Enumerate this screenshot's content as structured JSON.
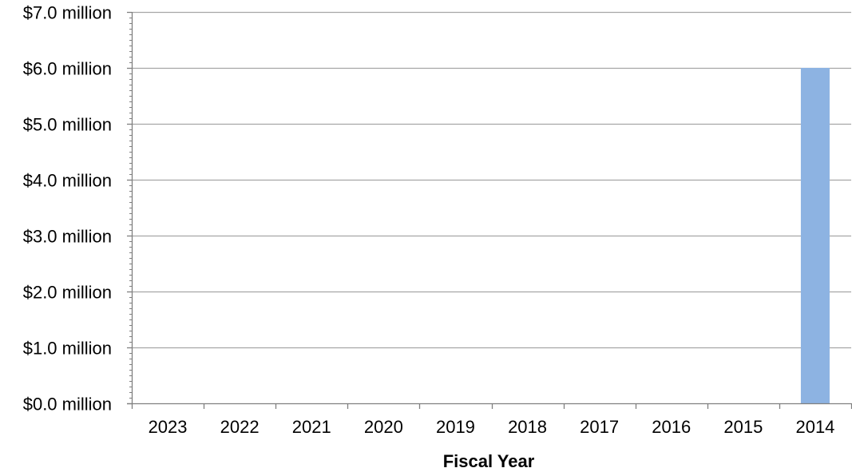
{
  "chart_data": {
    "type": "bar",
    "title": "",
    "xlabel": "Fiscal Year",
    "ylabel": "",
    "categories": [
      "2023",
      "2022",
      "2021",
      "2020",
      "2019",
      "2018",
      "2017",
      "2016",
      "2015",
      "2014"
    ],
    "series": [
      {
        "values": [
          0,
          0,
          0,
          0,
          0,
          0,
          0,
          0,
          0,
          6.0
        ]
      }
    ],
    "y_unit": "million",
    "ylim": [
      0,
      7
    ],
    "y_ticks": [
      0,
      1,
      2,
      3,
      4,
      5,
      6,
      7
    ],
    "y_tick_labels": [
      "$0.0 million",
      "$1.0 million",
      "$2.0 million",
      "$3.0 million",
      "$4.0 million",
      "$5.0 million",
      "$6.0 million",
      "$7.0 million"
    ],
    "grid": true,
    "legend": "none",
    "bar_color": "#8DB3E2",
    "grid_color": "#A6A6A6",
    "axis_color": "#808080"
  }
}
